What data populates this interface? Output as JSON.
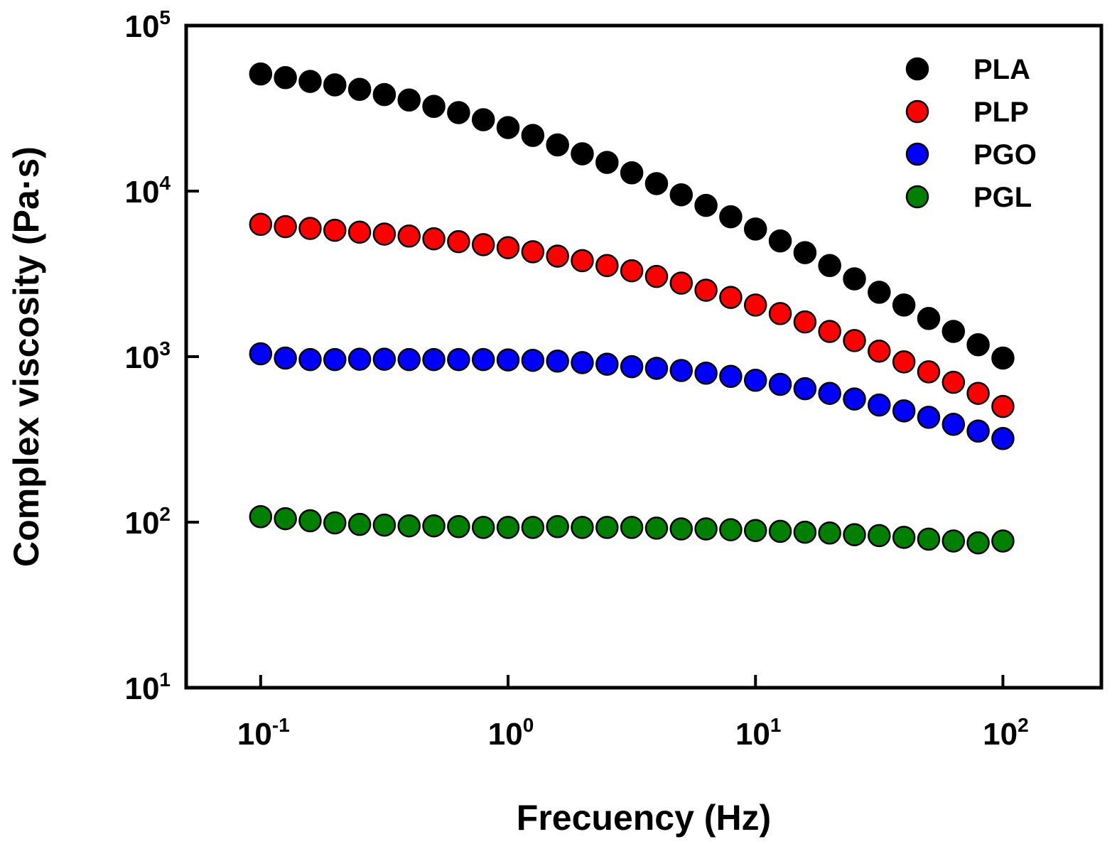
{
  "chart_data": {
    "type": "scatter",
    "xscale": "log",
    "yscale": "log",
    "xlabel": "Frecuency (Hz)",
    "ylabel": "Complex viscosity (Pa·s)",
    "xlim": [
      0.05,
      250
    ],
    "ylim": [
      10,
      100000
    ],
    "xticks": [
      {
        "value": 0.1,
        "base": "10",
        "exp": "-1"
      },
      {
        "value": 1,
        "base": "10",
        "exp": "0"
      },
      {
        "value": 10,
        "base": "10",
        "exp": "1"
      },
      {
        "value": 100,
        "base": "10",
        "exp": "2"
      }
    ],
    "yticks": [
      {
        "value": 10,
        "base": "10",
        "exp": "1"
      },
      {
        "value": 100,
        "base": "10",
        "exp": "2"
      },
      {
        "value": 1000,
        "base": "10",
        "exp": "3"
      },
      {
        "value": 10000,
        "base": "10",
        "exp": "4"
      },
      {
        "value": 100000,
        "base": "10",
        "exp": "5"
      }
    ],
    "x": [
      0.1,
      0.1259,
      0.1585,
      0.1995,
      0.2512,
      0.3162,
      0.3981,
      0.5012,
      0.631,
      0.7943,
      1,
      1.259,
      1.585,
      1.995,
      2.512,
      3.162,
      3.981,
      5.012,
      6.31,
      7.943,
      10,
      12.59,
      15.85,
      19.95,
      25.12,
      31.62,
      39.81,
      50.12,
      63.1,
      79.43,
      100
    ],
    "legend_position": "top-right",
    "series": [
      {
        "name": "PLA",
        "color": "#000000",
        "values": [
          51000,
          48500,
          46000,
          43800,
          41200,
          38300,
          35500,
          32500,
          29800,
          27000,
          24200,
          21700,
          19000,
          16800,
          14900,
          12900,
          11100,
          9500,
          8200,
          7000,
          5900,
          5000,
          4250,
          3550,
          2950,
          2450,
          2050,
          1700,
          1420,
          1180,
          980
        ]
      },
      {
        "name": "PLP",
        "color": "#ff0000",
        "values": [
          6300,
          6100,
          5950,
          5800,
          5650,
          5500,
          5350,
          5150,
          4950,
          4750,
          4550,
          4300,
          4050,
          3800,
          3550,
          3300,
          3050,
          2780,
          2520,
          2280,
          2050,
          1820,
          1620,
          1420,
          1250,
          1080,
          930,
          810,
          700,
          600,
          500
        ]
      },
      {
        "name": "PGO",
        "color": "#0000ff",
        "values": [
          1040,
          980,
          960,
          960,
          965,
          965,
          960,
          960,
          960,
          960,
          955,
          950,
          940,
          920,
          900,
          870,
          850,
          825,
          795,
          760,
          720,
          680,
          640,
          600,
          555,
          510,
          470,
          430,
          390,
          355,
          320
        ]
      },
      {
        "name": "PGL",
        "color": "#008000",
        "values": [
          108,
          105,
          102,
          99,
          97,
          96,
          95,
          95,
          94,
          93,
          93,
          93,
          94,
          93,
          93,
          93,
          92,
          91,
          91,
          90,
          89,
          88,
          87,
          86,
          84,
          83,
          81,
          79,
          77,
          75,
          77
        ]
      }
    ]
  }
}
